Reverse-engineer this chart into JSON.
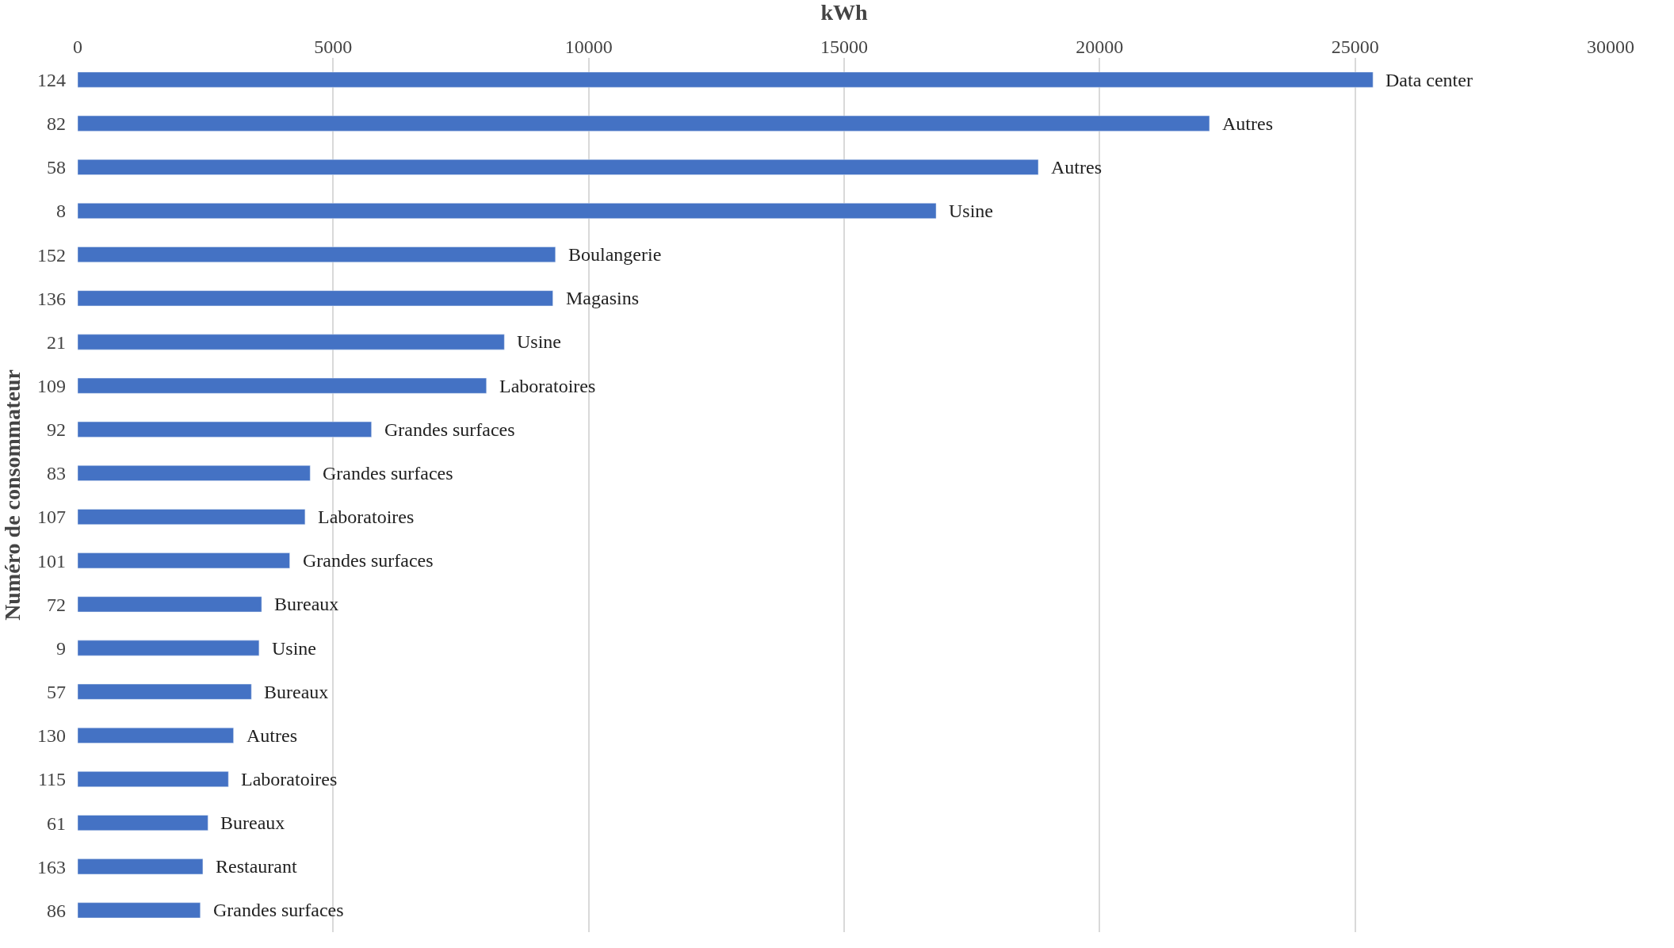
{
  "chart_data": {
    "type": "bar",
    "orientation": "horizontal",
    "xlabel": "kWh",
    "ylabel": "Numéro de consommateur",
    "categories": [
      "124",
      "82",
      "58",
      "8",
      "152",
      "136",
      "21",
      "109",
      "92",
      "83",
      "107",
      "101",
      "72",
      "9",
      "57",
      "130",
      "115",
      "61",
      "163",
      "86"
    ],
    "values": [
      25350,
      22150,
      18800,
      16800,
      9350,
      9300,
      8350,
      8000,
      5750,
      4550,
      4450,
      4150,
      3600,
      3550,
      3400,
      3050,
      2950,
      2550,
      2450,
      2400
    ],
    "color": "#4472c4",
    "xlim": [
      0,
      30000
    ],
    "xticks": [
      0,
      5000,
      10000,
      15000,
      20000,
      25000,
      30000
    ],
    "grid": "x",
    "annotations": [
      {
        "text": "Data center",
        "x": 25350,
        "y": "124"
      },
      {
        "text": "Autres",
        "x": 22150,
        "y": "82"
      },
      {
        "text": "Autres",
        "x": 18800,
        "y": "58"
      },
      {
        "text": "Usine",
        "x": 16800,
        "y": "8"
      },
      {
        "text": "Boulangerie",
        "x": 9350,
        "y": "152"
      },
      {
        "text": "Magasins",
        "x": 9300,
        "y": "136"
      },
      {
        "text": "Usine",
        "x": 8350,
        "y": "21"
      },
      {
        "text": "Laboratoires",
        "x": 8000,
        "y": "109"
      },
      {
        "text": "Grandes surfaces",
        "x": 5750,
        "y": "92"
      },
      {
        "text": "Grandes surfaces",
        "x": 4550,
        "y": "83"
      },
      {
        "text": "Laboratoires",
        "x": 4450,
        "y": "107"
      },
      {
        "text": "Grandes surfaces",
        "x": 4150,
        "y": "101"
      },
      {
        "text": "Bureaux",
        "x": 3600,
        "y": "72"
      },
      {
        "text": "Usine",
        "x": 3550,
        "y": "9"
      },
      {
        "text": "Bureaux",
        "x": 3400,
        "y": "57"
      },
      {
        "text": "Autres",
        "x": 3050,
        "y": "130"
      },
      {
        "text": "Laboratoires",
        "x": 2950,
        "y": "115"
      },
      {
        "text": "Bureaux",
        "x": 2550,
        "y": "61"
      },
      {
        "text": "Restaurant",
        "x": 2450,
        "y": "163"
      },
      {
        "text": "Grandes surfaces",
        "x": 2400,
        "y": "86"
      }
    ]
  }
}
